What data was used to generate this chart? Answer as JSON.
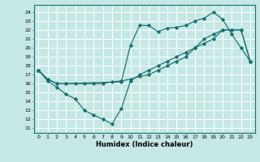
{
  "xlabel": "Humidex (Indice chaleur)",
  "bg_color": "#c5e8e5",
  "grid_color": "#ffffff",
  "line_color": "#1a7070",
  "xlim": [
    -0.5,
    23.5
  ],
  "ylim": [
    10.5,
    24.8
  ],
  "yticks": [
    11,
    12,
    13,
    14,
    15,
    16,
    17,
    18,
    19,
    20,
    21,
    22,
    23,
    24
  ],
  "xticks": [
    0,
    1,
    2,
    3,
    4,
    5,
    6,
    7,
    8,
    9,
    10,
    11,
    12,
    13,
    14,
    15,
    16,
    17,
    18,
    19,
    20,
    21,
    22,
    23
  ],
  "line1_x": [
    0,
    1,
    2,
    3,
    9,
    10,
    11,
    12,
    13,
    14,
    15,
    16,
    17,
    18,
    19,
    20,
    21,
    22,
    23
  ],
  "line1_y": [
    17.5,
    16.5,
    16.0,
    16.0,
    16.2,
    20.3,
    22.5,
    22.5,
    21.8,
    22.2,
    22.3,
    22.5,
    23.0,
    23.3,
    24.0,
    23.2,
    21.5,
    20.0,
    18.5
  ],
  "line2_x": [
    0,
    1,
    2,
    3,
    4,
    5,
    6,
    7,
    8,
    9,
    10,
    11,
    12,
    13,
    14,
    15,
    16,
    17,
    18,
    19,
    20,
    21,
    22,
    23
  ],
  "line2_y": [
    17.5,
    16.3,
    15.6,
    14.8,
    14.3,
    13.0,
    12.5,
    12.0,
    11.5,
    13.2,
    16.3,
    17.0,
    17.5,
    18.0,
    18.5,
    19.0,
    19.5,
    20.0,
    20.5,
    21.0,
    22.0,
    22.0,
    22.0,
    18.5
  ],
  "line3_x": [
    0,
    1,
    2,
    3,
    4,
    5,
    6,
    7,
    8,
    9,
    10,
    11,
    12,
    13,
    14,
    15,
    16,
    17,
    18,
    19,
    20,
    21,
    22,
    23
  ],
  "line3_y": [
    17.5,
    16.5,
    16.0,
    16.0,
    16.0,
    16.0,
    16.0,
    16.0,
    16.2,
    16.3,
    16.5,
    16.8,
    17.0,
    17.5,
    18.0,
    18.5,
    19.0,
    20.0,
    21.0,
    21.5,
    22.0,
    22.0,
    22.0,
    18.5
  ]
}
